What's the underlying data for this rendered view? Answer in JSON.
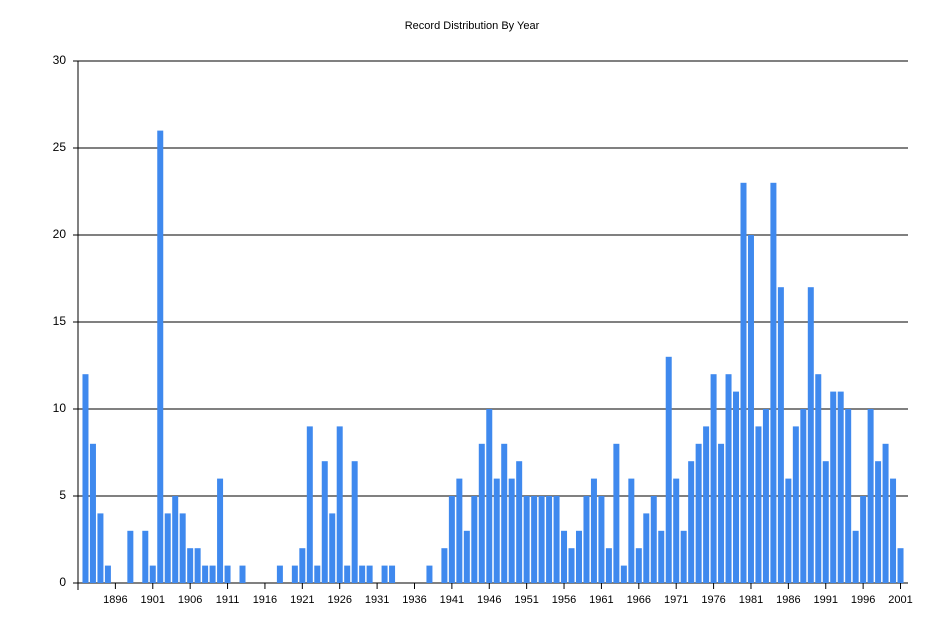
{
  "chart_data": {
    "type": "bar",
    "title": "Record Distribution By Year",
    "color": "#3f89ee",
    "grid": true,
    "x": [
      1892,
      1893,
      1894,
      1895,
      1898,
      1900,
      1901,
      1902,
      1903,
      1904,
      1905,
      1906,
      1907,
      1908,
      1909,
      1910,
      1911,
      1913,
      1918,
      1920,
      1921,
      1922,
      1923,
      1924,
      1925,
      1926,
      1927,
      1928,
      1929,
      1930,
      1932,
      1933,
      1938,
      1940,
      1941,
      1942,
      1943,
      1944,
      1945,
      1946,
      1947,
      1948,
      1949,
      1950,
      1951,
      1952,
      1953,
      1954,
      1955,
      1956,
      1957,
      1958,
      1959,
      1960,
      1961,
      1962,
      1963,
      1964,
      1965,
      1966,
      1967,
      1968,
      1969,
      1970,
      1971,
      1972,
      1973,
      1974,
      1975,
      1976,
      1977,
      1978,
      1979,
      1980,
      1981,
      1982,
      1983,
      1984,
      1985,
      1986,
      1987,
      1988,
      1989,
      1990,
      1991,
      1992,
      1993,
      1994,
      1995,
      1996,
      1997,
      1998,
      1999,
      2000,
      2001
    ],
    "values": [
      12,
      8,
      4,
      1,
      3,
      3,
      1,
      26,
      4,
      5,
      4,
      2,
      2,
      1,
      1,
      6,
      1,
      1,
      1,
      1,
      2,
      9,
      1,
      7,
      4,
      9,
      1,
      7,
      1,
      1,
      1,
      1,
      1,
      2,
      5,
      6,
      3,
      5,
      8,
      10,
      6,
      8,
      6,
      7,
      5,
      5,
      5,
      5,
      5,
      3,
      2,
      3,
      5,
      6,
      5,
      2,
      8,
      1,
      6,
      2,
      4,
      5,
      3,
      13,
      6,
      3,
      7,
      8,
      9,
      12,
      8,
      12,
      11,
      23,
      20,
      9,
      10,
      23,
      17,
      6,
      9,
      10,
      17,
      12,
      7,
      11,
      11,
      10,
      3,
      5,
      10,
      7,
      8,
      6,
      2
    ],
    "xlim": [
      1891,
      2002
    ],
    "xticks": [
      1896,
      1901,
      1906,
      1911,
      1916,
      1921,
      1926,
      1931,
      1936,
      1941,
      1946,
      1951,
      1956,
      1961,
      1966,
      1971,
      1976,
      1981,
      1986,
      1991,
      1996,
      2001
    ],
    "ylim": [
      0,
      30
    ],
    "yticks": [
      0,
      5,
      10,
      15,
      20,
      25,
      30
    ]
  }
}
